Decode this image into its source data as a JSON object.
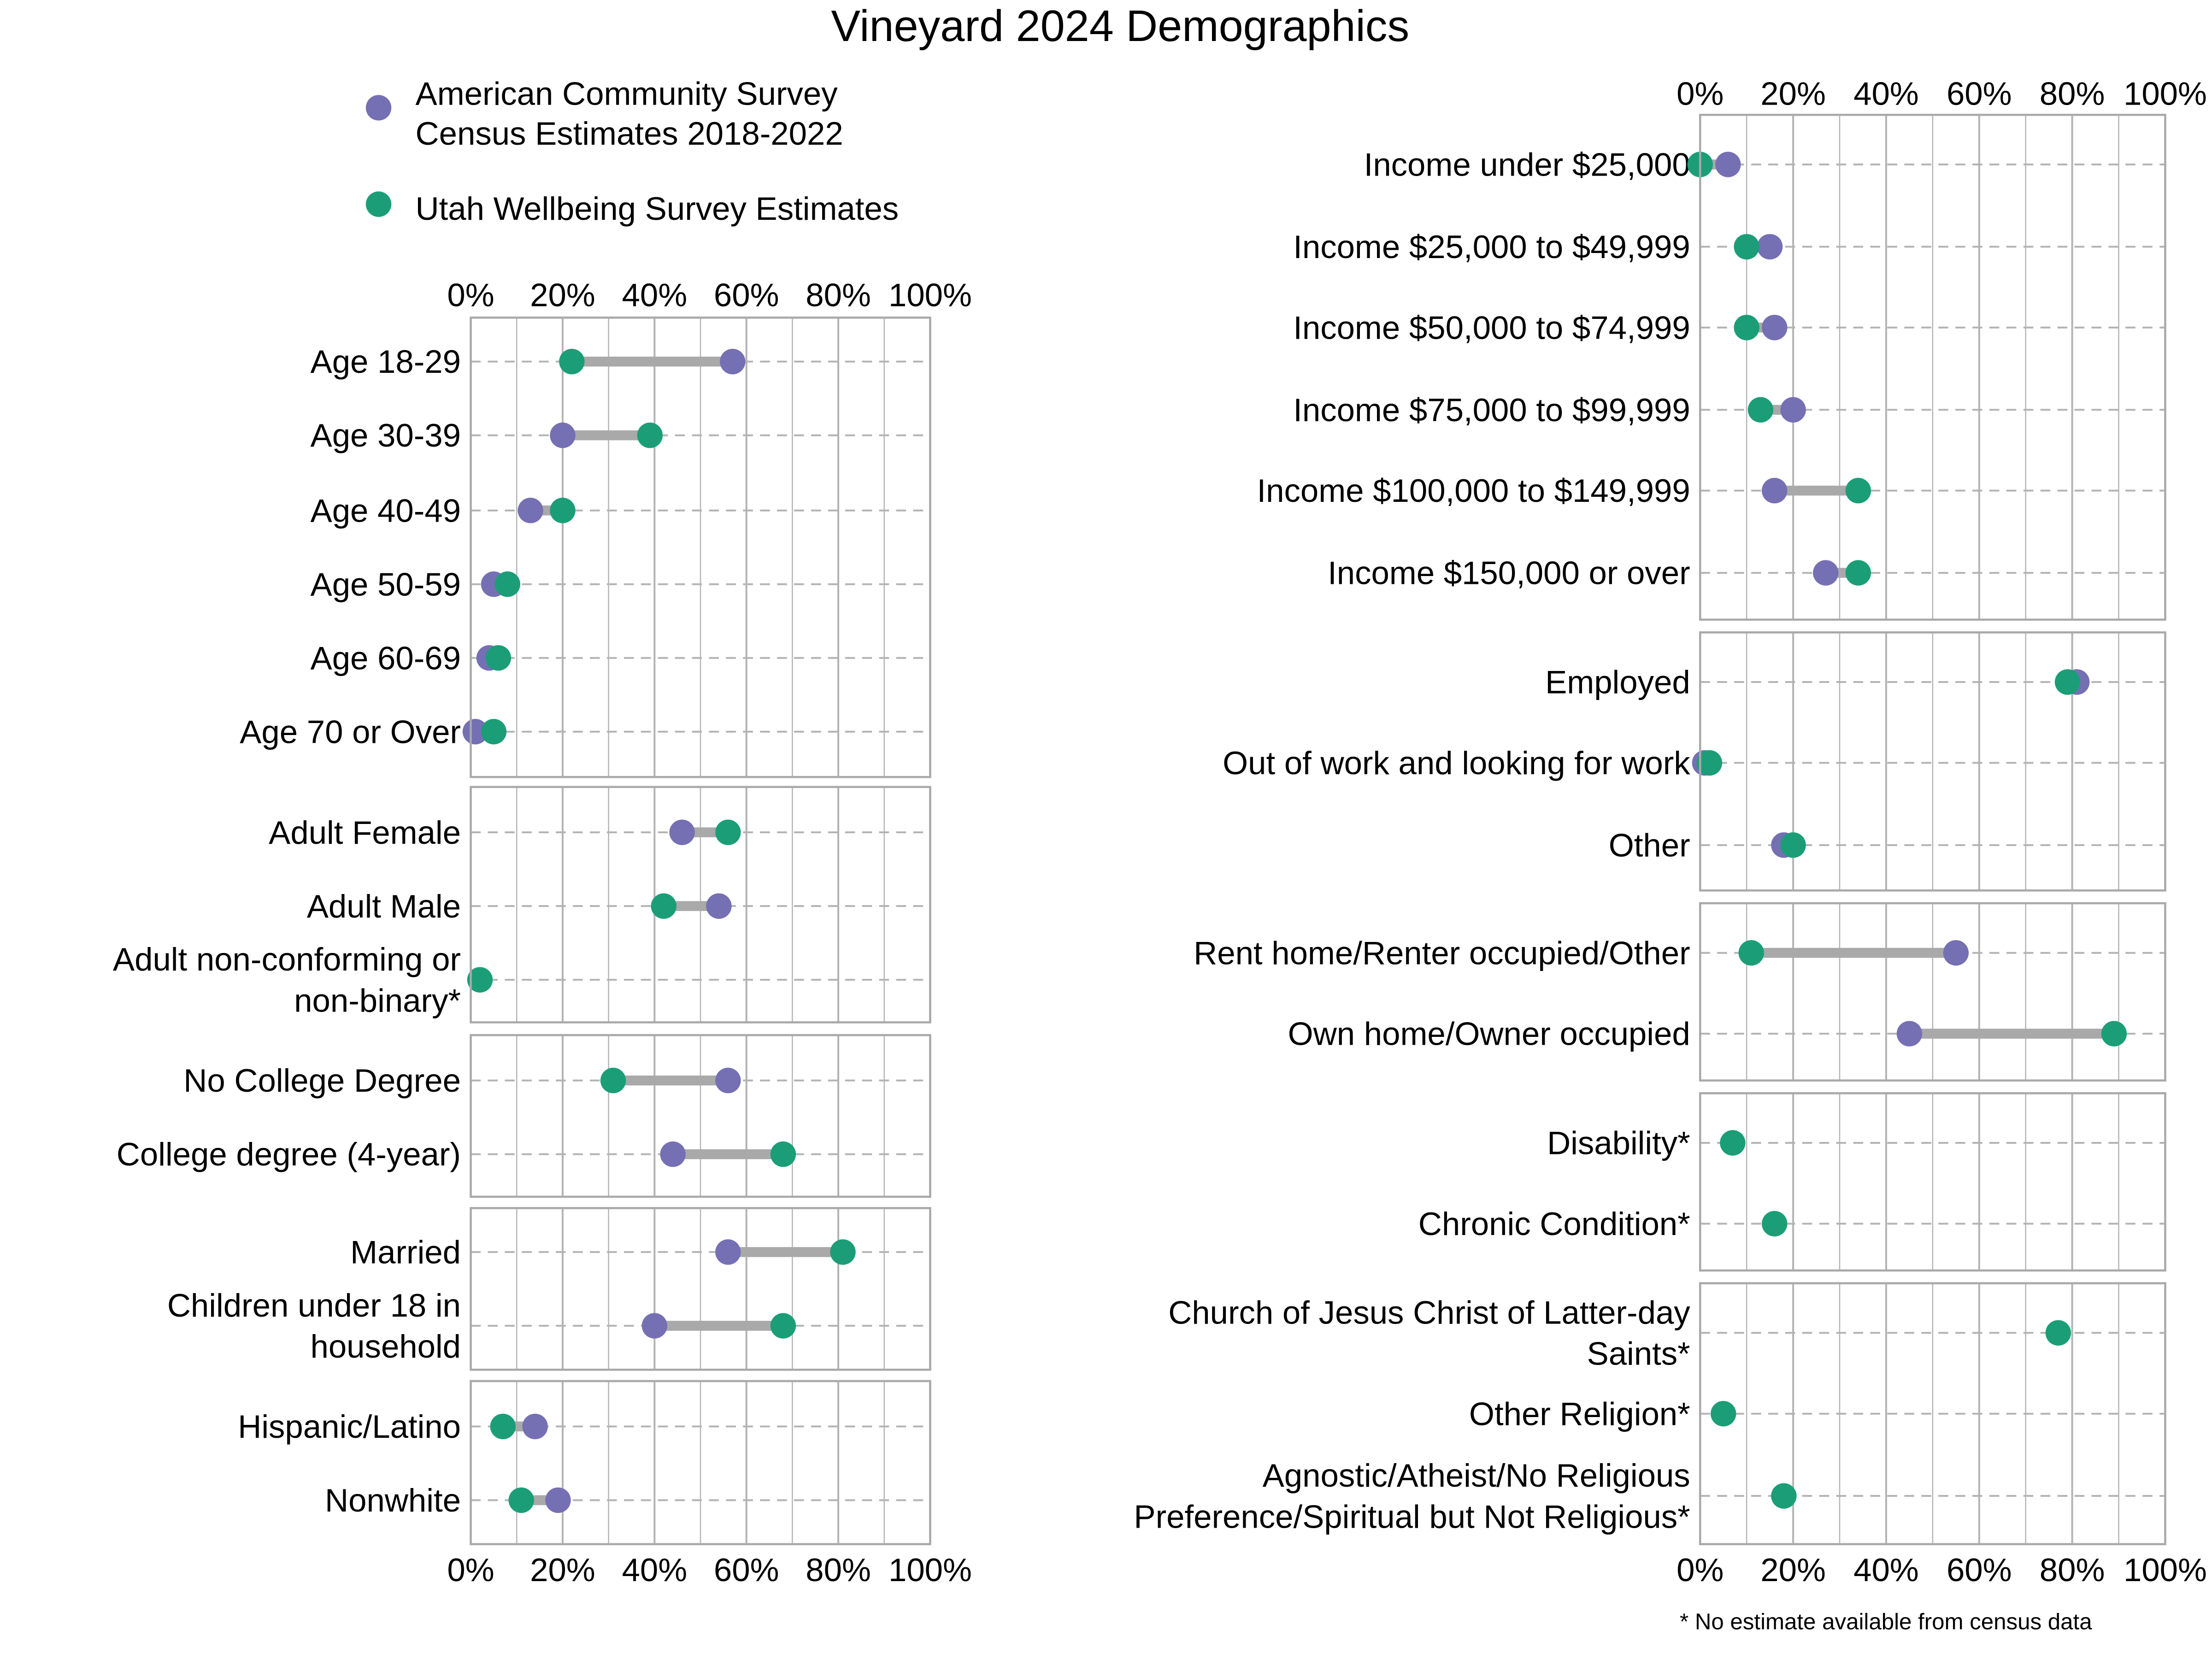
{
  "chart_data": {
    "type": "scatter",
    "subtype": "dumbbell",
    "title": "Vineyard 2024 Demographics",
    "footnote": "* No estimate available from census data",
    "xlim": [
      0,
      100
    ],
    "x_ticks": [
      "0%",
      "20%",
      "40%",
      "60%",
      "80%",
      "100%"
    ],
    "grid": true,
    "legend_placement": "top-left",
    "legend": [
      {
        "key": "acs",
        "lines": [
          "American Community Survey",
          "Census Estimates 2018-2022"
        ],
        "color": "#7570b3"
      },
      {
        "key": "uws",
        "lines": [
          "Utah Wellbeing Survey Estimates"
        ],
        "color": "#1b9e77"
      }
    ],
    "connector_color": "#a9a9a9",
    "columns": [
      {
        "panels": [
          {
            "rows": [
              {
                "label": [
                  "Age 18-29"
                ],
                "acs": 57,
                "uws": 22
              },
              {
                "label": [
                  "Age 30-39"
                ],
                "acs": 20,
                "uws": 39
              },
              {
                "label": [
                  "Age 40-49"
                ],
                "acs": 13,
                "uws": 20
              },
              {
                "label": [
                  "Age 50-59"
                ],
                "acs": 5,
                "uws": 8
              },
              {
                "label": [
                  "Age 60-69"
                ],
                "acs": 4,
                "uws": 6
              },
              {
                "label": [
                  "Age 70 or Over"
                ],
                "acs": 1,
                "uws": 5
              }
            ]
          },
          {
            "rows": [
              {
                "label": [
                  "Adult Female"
                ],
                "acs": 46,
                "uws": 56
              },
              {
                "label": [
                  "Adult Male"
                ],
                "acs": 54,
                "uws": 42
              },
              {
                "label": [
                  "Adult non-conforming or",
                  "non-binary*"
                ],
                "acs": null,
                "uws": 2
              }
            ]
          },
          {
            "rows": [
              {
                "label": [
                  "No College Degree"
                ],
                "acs": 56,
                "uws": 31
              },
              {
                "label": [
                  "College degree (4-year)"
                ],
                "acs": 44,
                "uws": 68
              }
            ]
          },
          {
            "rows": [
              {
                "label": [
                  "Married"
                ],
                "acs": 56,
                "uws": 81
              },
              {
                "label": [
                  "Children under 18 in",
                  "household"
                ],
                "acs": 40,
                "uws": 68
              }
            ]
          },
          {
            "rows": [
              {
                "label": [
                  "Hispanic/Latino"
                ],
                "acs": 14,
                "uws": 7
              },
              {
                "label": [
                  "Nonwhite"
                ],
                "acs": 19,
                "uws": 11
              }
            ]
          }
        ]
      },
      {
        "panels": [
          {
            "rows": [
              {
                "label": [
                  "Income under $25,000"
                ],
                "acs": 6,
                "uws": 0
              },
              {
                "label": [
                  "Income $25,000 to $49,999"
                ],
                "acs": 15,
                "uws": 10
              },
              {
                "label": [
                  "Income $50,000 to $74,999"
                ],
                "acs": 16,
                "uws": 10
              },
              {
                "label": [
                  "Income $75,000 to $99,999"
                ],
                "acs": 20,
                "uws": 13
              },
              {
                "label": [
                  "Income $100,000 to $149,999"
                ],
                "acs": 16,
                "uws": 34
              },
              {
                "label": [
                  "Income $150,000 or over"
                ],
                "acs": 27,
                "uws": 34
              }
            ]
          },
          {
            "rows": [
              {
                "label": [
                  "Employed"
                ],
                "acs": 81,
                "uws": 79
              },
              {
                "label": [
                  "Out of work and looking for work"
                ],
                "acs": 1,
                "uws": 2
              },
              {
                "label": [
                  "Other"
                ],
                "acs": 18,
                "uws": 20
              }
            ]
          },
          {
            "rows": [
              {
                "label": [
                  "Rent home/Renter occupied/Other"
                ],
                "acs": 55,
                "uws": 11
              },
              {
                "label": [
                  "Own home/Owner occupied"
                ],
                "acs": 45,
                "uws": 89
              }
            ]
          },
          {
            "rows": [
              {
                "label": [
                  "Disability*"
                ],
                "acs": null,
                "uws": 7
              },
              {
                "label": [
                  "Chronic Condition*"
                ],
                "acs": null,
                "uws": 16
              }
            ]
          },
          {
            "rows": [
              {
                "label": [
                  "Church of Jesus Christ of Latter-day",
                  "Saints*"
                ],
                "acs": null,
                "uws": 77
              },
              {
                "label": [
                  "Other Religion*"
                ],
                "acs": null,
                "uws": 5
              },
              {
                "label": [
                  "Agnostic/Atheist/No Religious",
                  "Preference/Spiritual but Not Religious*"
                ],
                "acs": null,
                "uws": 18
              }
            ]
          }
        ]
      }
    ]
  }
}
